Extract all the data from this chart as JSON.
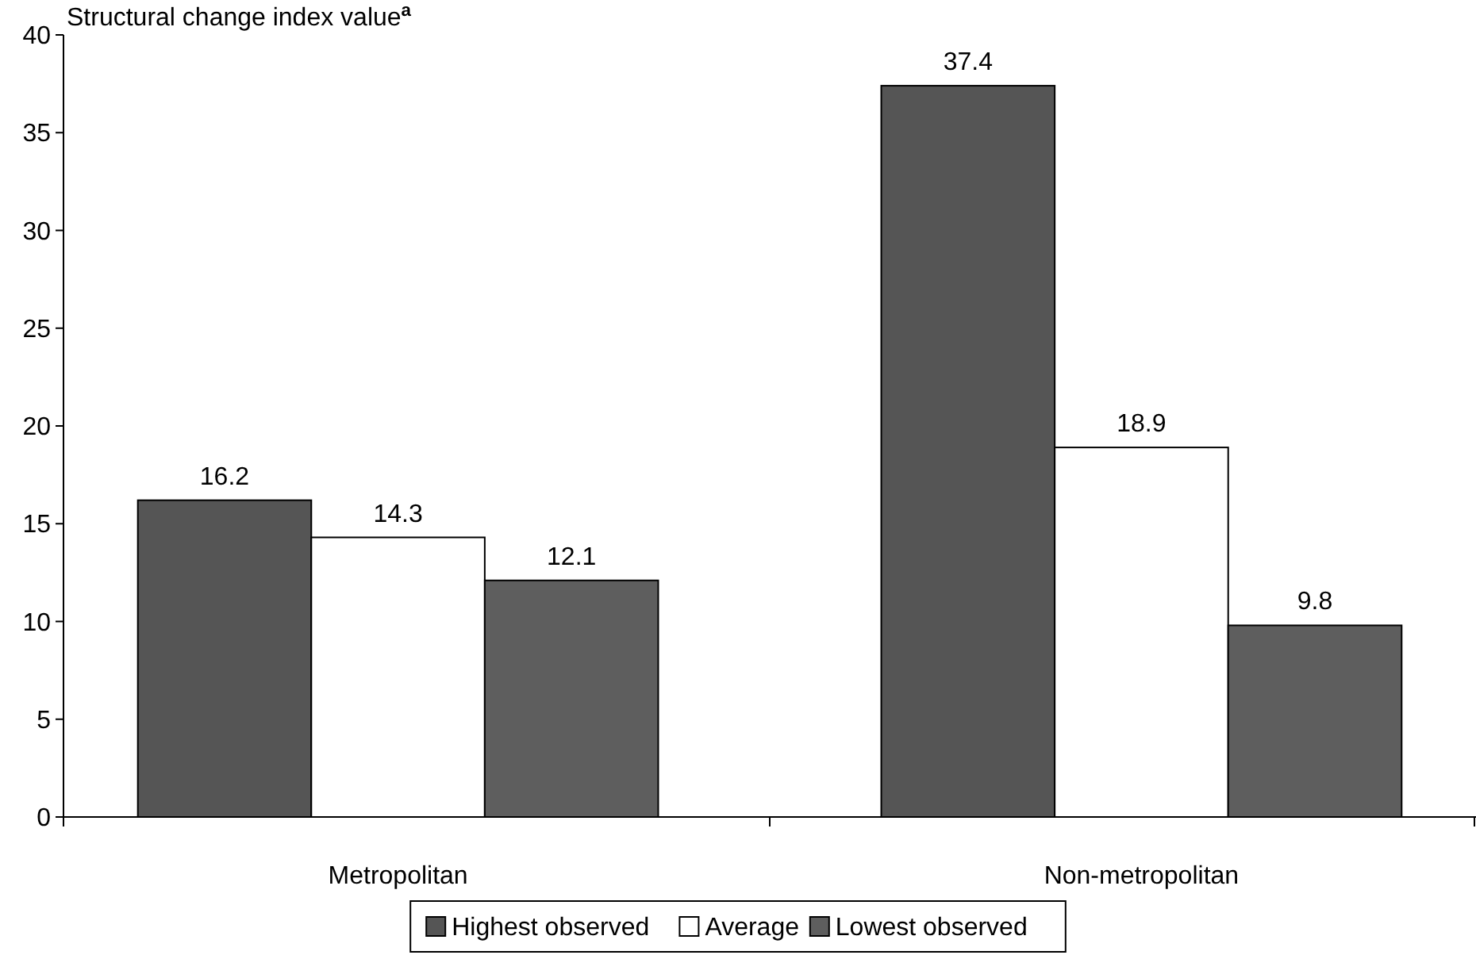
{
  "chart_data": {
    "type": "bar",
    "ylabel": "Structural change index value$^{a}$",
    "categories": [
      "Metropolitan",
      "Non-metropolitan"
    ],
    "series": [
      {
        "name": "Highest observed",
        "color": "#555555",
        "values": [
          16.2,
          37.4
        ]
      },
      {
        "name": "Average",
        "color": "#ffffff",
        "values": [
          14.3,
          18.9
        ]
      },
      {
        "name": "Lowest observed",
        "color": "#5e5e5e",
        "values": [
          12.1,
          9.8
        ]
      }
    ],
    "ylim": [
      0,
      40
    ],
    "yticks": [
      0,
      5,
      10,
      15,
      20,
      25,
      30,
      35,
      40
    ],
    "data_labels": true,
    "grid": false,
    "legend": "bottom"
  }
}
